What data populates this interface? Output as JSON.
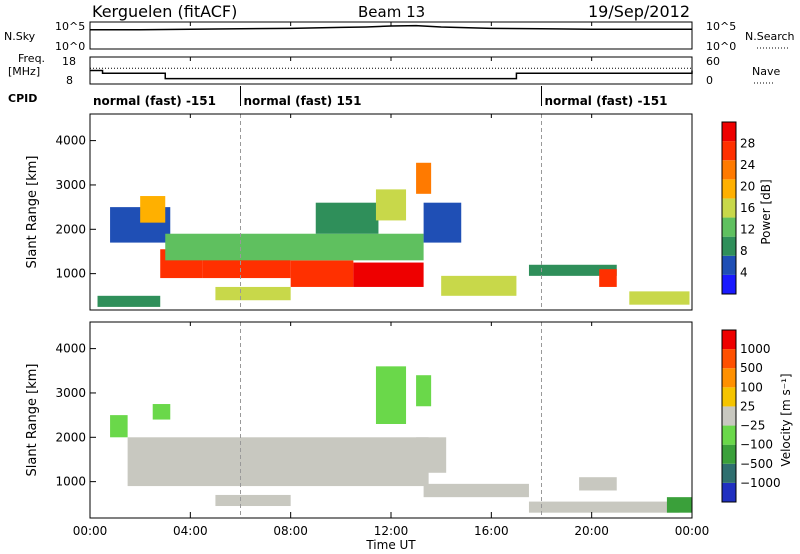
{
  "header": {
    "station": "Kerguelen (fitACF)",
    "beam": "Beam 13",
    "date": "19/Sep/2012"
  },
  "panels": {
    "nsky_label": "N.Sky",
    "nsky_ticks": [
      "10^5",
      "10^0"
    ],
    "nsearch_label": "N.Search",
    "nsearch_ticks": [
      "10^5",
      "10^0"
    ],
    "freq_label_1": "Freq.",
    "freq_label_2": "[MHz]",
    "freq_ticks": [
      "18",
      "8"
    ],
    "nave_label": "Nave",
    "nave_ticks": [
      "60",
      "0"
    ],
    "cpid_label": "CPID",
    "cpid_segments": [
      {
        "label": "normal (fast) -151",
        "start_hour": 0
      },
      {
        "label": "normal (fast) 151",
        "start_hour": 6
      },
      {
        "label": "normal (fast) -151",
        "start_hour": 18
      }
    ]
  },
  "axes": {
    "ylabel": "Slant Range [km]",
    "xlabel": "Time UT",
    "x_ticks": [
      "00:00",
      "04:00",
      "08:00",
      "12:00",
      "16:00",
      "20:00",
      "00:00"
    ],
    "y_ticks": [
      "1000",
      "2000",
      "3000",
      "4000"
    ]
  },
  "colorbars": {
    "power": {
      "label": "Power [dB]",
      "ticks": [
        "4",
        "8",
        "12",
        "16",
        "20",
        "24",
        "28"
      ],
      "colors": [
        "#1a1aff",
        "#1f4fb5",
        "#2f8f5a",
        "#5fc05f",
        "#c8d84a",
        "#ffb000",
        "#ff7a00",
        "#ff3000",
        "#ee0000"
      ]
    },
    "velocity": {
      "label": "Velocity [m s⁻¹]",
      "ticks": [
        "1000",
        "500",
        "100",
        "25",
        "−25",
        "−100",
        "−500",
        "−1000"
      ],
      "colors": [
        "#2030c0",
        "#2f6f6f",
        "#3aa03a",
        "#6ad84a",
        "#c8c8c0",
        "#f5c400",
        "#ff9000",
        "#ff5000",
        "#ee0000"
      ]
    }
  },
  "chart_data": [
    {
      "type": "line",
      "title": "N.Sky / N.Search",
      "x_hours": [
        0,
        2,
        4,
        6,
        8,
        10,
        11,
        12,
        13,
        14,
        16,
        18,
        20,
        22,
        24
      ],
      "nsky_log10": [
        4.2,
        4.2,
        4.3,
        4.4,
        4.5,
        4.7,
        4.8,
        5.0,
        5.1,
        4.8,
        4.5,
        4.4,
        4.3,
        4.3,
        4.3
      ],
      "ylim": [
        0,
        5
      ]
    },
    {
      "type": "line",
      "title": "Freq. / Nave",
      "x_hours": [
        0,
        0.5,
        3,
        17,
        24
      ],
      "freq_mhz": [
        13,
        12,
        10,
        12,
        13
      ],
      "nave": [
        35,
        35,
        35,
        35,
        35
      ],
      "freq_ylim": [
        8,
        18
      ],
      "nave_ylim": [
        0,
        60
      ]
    },
    {
      "type": "heatmap",
      "name": "power",
      "xlim": [
        0,
        24
      ],
      "ylim": [
        180,
        4600
      ],
      "cbar_range": [
        0,
        30
      ],
      "features": [
        {
          "t0": 0.3,
          "t1": 2.8,
          "r0": 250,
          "r1": 500,
          "value": 8
        },
        {
          "t0": 0.8,
          "t1": 3.2,
          "r0": 1700,
          "r1": 2500,
          "value": 6
        },
        {
          "t0": 2.0,
          "t1": 3.0,
          "r0": 2150,
          "r1": 2750,
          "value": 18
        },
        {
          "t0": 2.8,
          "t1": 4.5,
          "r0": 900,
          "r1": 1550,
          "value": 26
        },
        {
          "t0": 4.5,
          "t1": 8.0,
          "r0": 900,
          "r1": 1400,
          "value": 24
        },
        {
          "t0": 8.0,
          "t1": 10.5,
          "r0": 700,
          "r1": 1300,
          "value": 26
        },
        {
          "t0": 10.5,
          "t1": 13.3,
          "r0": 700,
          "r1": 1250,
          "value": 28
        },
        {
          "t0": 3.0,
          "t1": 13.3,
          "r0": 1300,
          "r1": 1900,
          "value": 12
        },
        {
          "t0": 9.0,
          "t1": 11.5,
          "r0": 1900,
          "r1": 2600,
          "value": 8
        },
        {
          "t0": 13.3,
          "t1": 14.8,
          "r0": 1700,
          "r1": 2600,
          "value": 5
        },
        {
          "t0": 11.4,
          "t1": 12.6,
          "r0": 2200,
          "r1": 2900,
          "value": 16
        },
        {
          "t0": 13.0,
          "t1": 13.6,
          "r0": 2800,
          "r1": 3500,
          "value": 22
        },
        {
          "t0": 14.0,
          "t1": 17.0,
          "r0": 500,
          "r1": 950,
          "value": 16
        },
        {
          "t0": 17.5,
          "t1": 21.0,
          "r0": 950,
          "r1": 1200,
          "value": 8
        },
        {
          "t0": 20.3,
          "t1": 21.0,
          "r0": 700,
          "r1": 1100,
          "value": 26
        },
        {
          "t0": 21.5,
          "t1": 23.9,
          "r0": 300,
          "r1": 600,
          "value": 14
        },
        {
          "t0": 5.0,
          "t1": 8.0,
          "r0": 400,
          "r1": 700,
          "value": 16
        }
      ]
    },
    {
      "type": "heatmap",
      "name": "velocity",
      "xlim": [
        0,
        24
      ],
      "ylim": [
        180,
        4600
      ],
      "cbar_range": [
        -1000,
        1000
      ],
      "features": [
        {
          "t0": 0.8,
          "t1": 1.5,
          "r0": 2000,
          "r1": 2500,
          "value": -300
        },
        {
          "t0": 2.5,
          "t1": 3.2,
          "r0": 2400,
          "r1": 2750,
          "value": -300
        },
        {
          "t0": 1.5,
          "t1": 13.5,
          "r0": 900,
          "r1": 2000,
          "value": 0
        },
        {
          "t0": 5.0,
          "t1": 8.0,
          "r0": 450,
          "r1": 700,
          "value": 0
        },
        {
          "t0": 13.3,
          "t1": 17.5,
          "r0": 650,
          "r1": 950,
          "value": 60
        },
        {
          "t0": 17.5,
          "t1": 23.5,
          "r0": 300,
          "r1": 550,
          "value": 80
        },
        {
          "t0": 19.5,
          "t1": 21.0,
          "r0": 800,
          "r1": 1100,
          "value": 0
        },
        {
          "t0": 23.0,
          "t1": 24.0,
          "r0": 300,
          "r1": 650,
          "value": -400
        },
        {
          "t0": 11.4,
          "t1": 12.6,
          "r0": 2300,
          "r1": 3600,
          "value": -200
        },
        {
          "t0": 13.0,
          "t1": 13.6,
          "r0": 2700,
          "r1": 3400,
          "value": -150
        },
        {
          "t0": 13.0,
          "t1": 14.2,
          "r0": 1200,
          "r1": 2000,
          "value": 60
        }
      ]
    }
  ]
}
